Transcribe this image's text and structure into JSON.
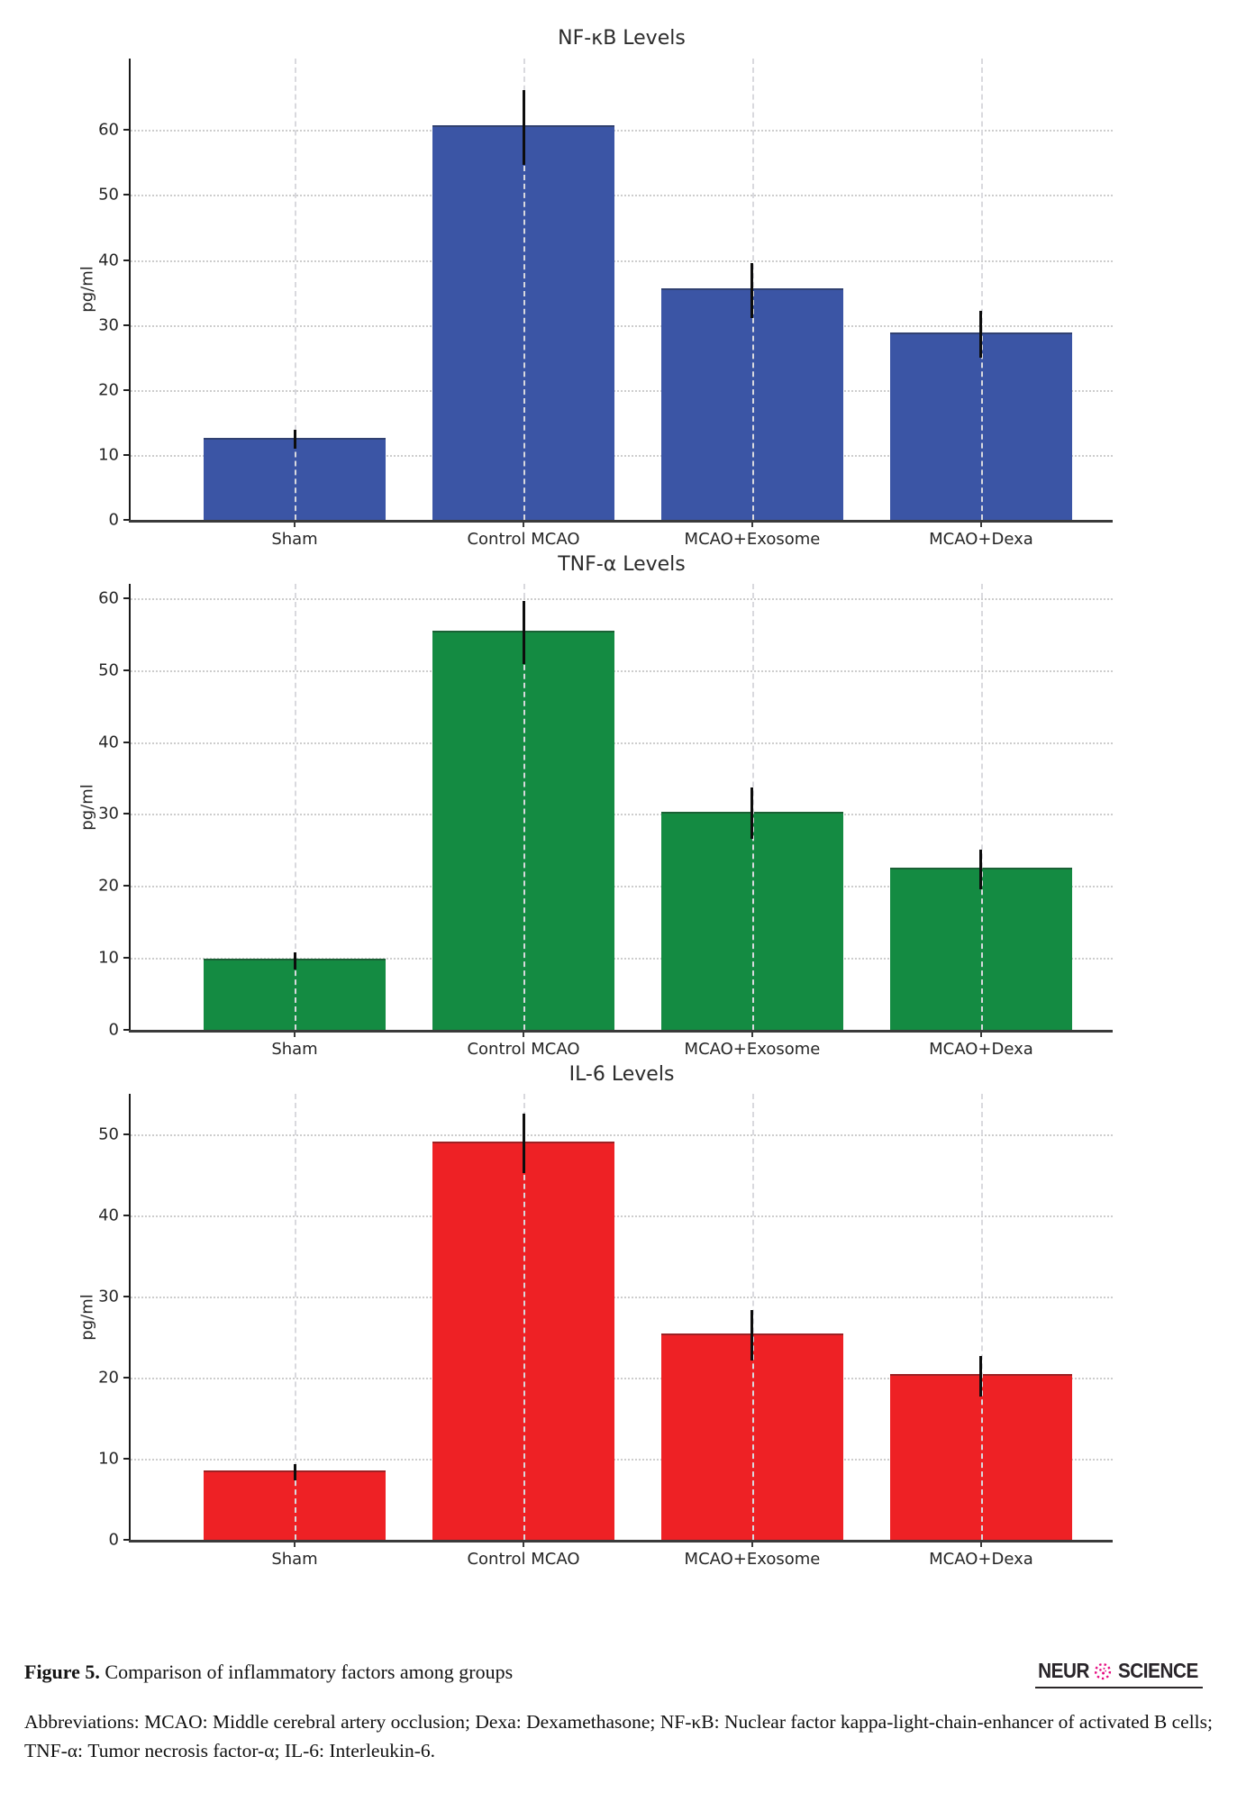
{
  "chart_data": [
    {
      "type": "bar",
      "title": "NF-κB Levels",
      "ylabel": "pg/ml",
      "categories": [
        "Sham",
        "Control MCAO",
        "MCAO+Exosome",
        "MCAO+Dexa"
      ],
      "values": [
        12.4,
        60.4,
        35.3,
        28.6
      ],
      "errors": [
        1.5,
        5.7,
        4.2,
        3.6
      ],
      "bar_color": "#3b55a5",
      "ylim": [
        0,
        71
      ],
      "yticks": [
        0,
        10,
        20,
        30,
        40,
        50,
        60
      ],
      "grid": true,
      "legend": false
    },
    {
      "type": "bar",
      "title": "TNF-α Levels",
      "ylabel": "pg/ml",
      "categories": [
        "Sham",
        "Control MCAO",
        "MCAO+Exosome",
        "MCAO+Dexa"
      ],
      "values": [
        9.6,
        55.2,
        30.1,
        22.3
      ],
      "errors": [
        1.2,
        4.4,
        3.6,
        2.8
      ],
      "bar_color": "#148b42",
      "ylim": [
        0,
        62
      ],
      "yticks": [
        0,
        10,
        20,
        30,
        40,
        50,
        60
      ],
      "grid": true,
      "legend": false
    },
    {
      "type": "bar",
      "title": "IL-6 Levels",
      "ylabel": "pg/ml",
      "categories": [
        "Sham",
        "Control MCAO",
        "MCAO+Exosome",
        "MCAO+Dexa"
      ],
      "values": [
        8.3,
        48.9,
        25.2,
        20.2
      ],
      "errors": [
        1.0,
        3.7,
        3.1,
        2.5
      ],
      "bar_color": "#ee2125",
      "ylim": [
        0,
        55
      ],
      "yticks": [
        0,
        10,
        20,
        30,
        40,
        50
      ],
      "grid": true,
      "legend": false
    }
  ],
  "caption": {
    "label": "Figure 5.",
    "text": "Comparison of inflammatory factors among groups"
  },
  "logo": {
    "left": "NEUR",
    "right": "SCIENCE",
    "icon": "flower-cell-icon",
    "icon_color": "#e5097f",
    "text_color": "#29252a"
  },
  "abbreviations": "Abbreviations: MCAO: Middle cerebral artery occlusion; Dexa: Dexamethasone; NF-κB: Nuclear factor kappa-light-chain-enhancer of activated B cells; TNF-α: Tumor necrosis factor-α; IL-6: Interleukin-6."
}
